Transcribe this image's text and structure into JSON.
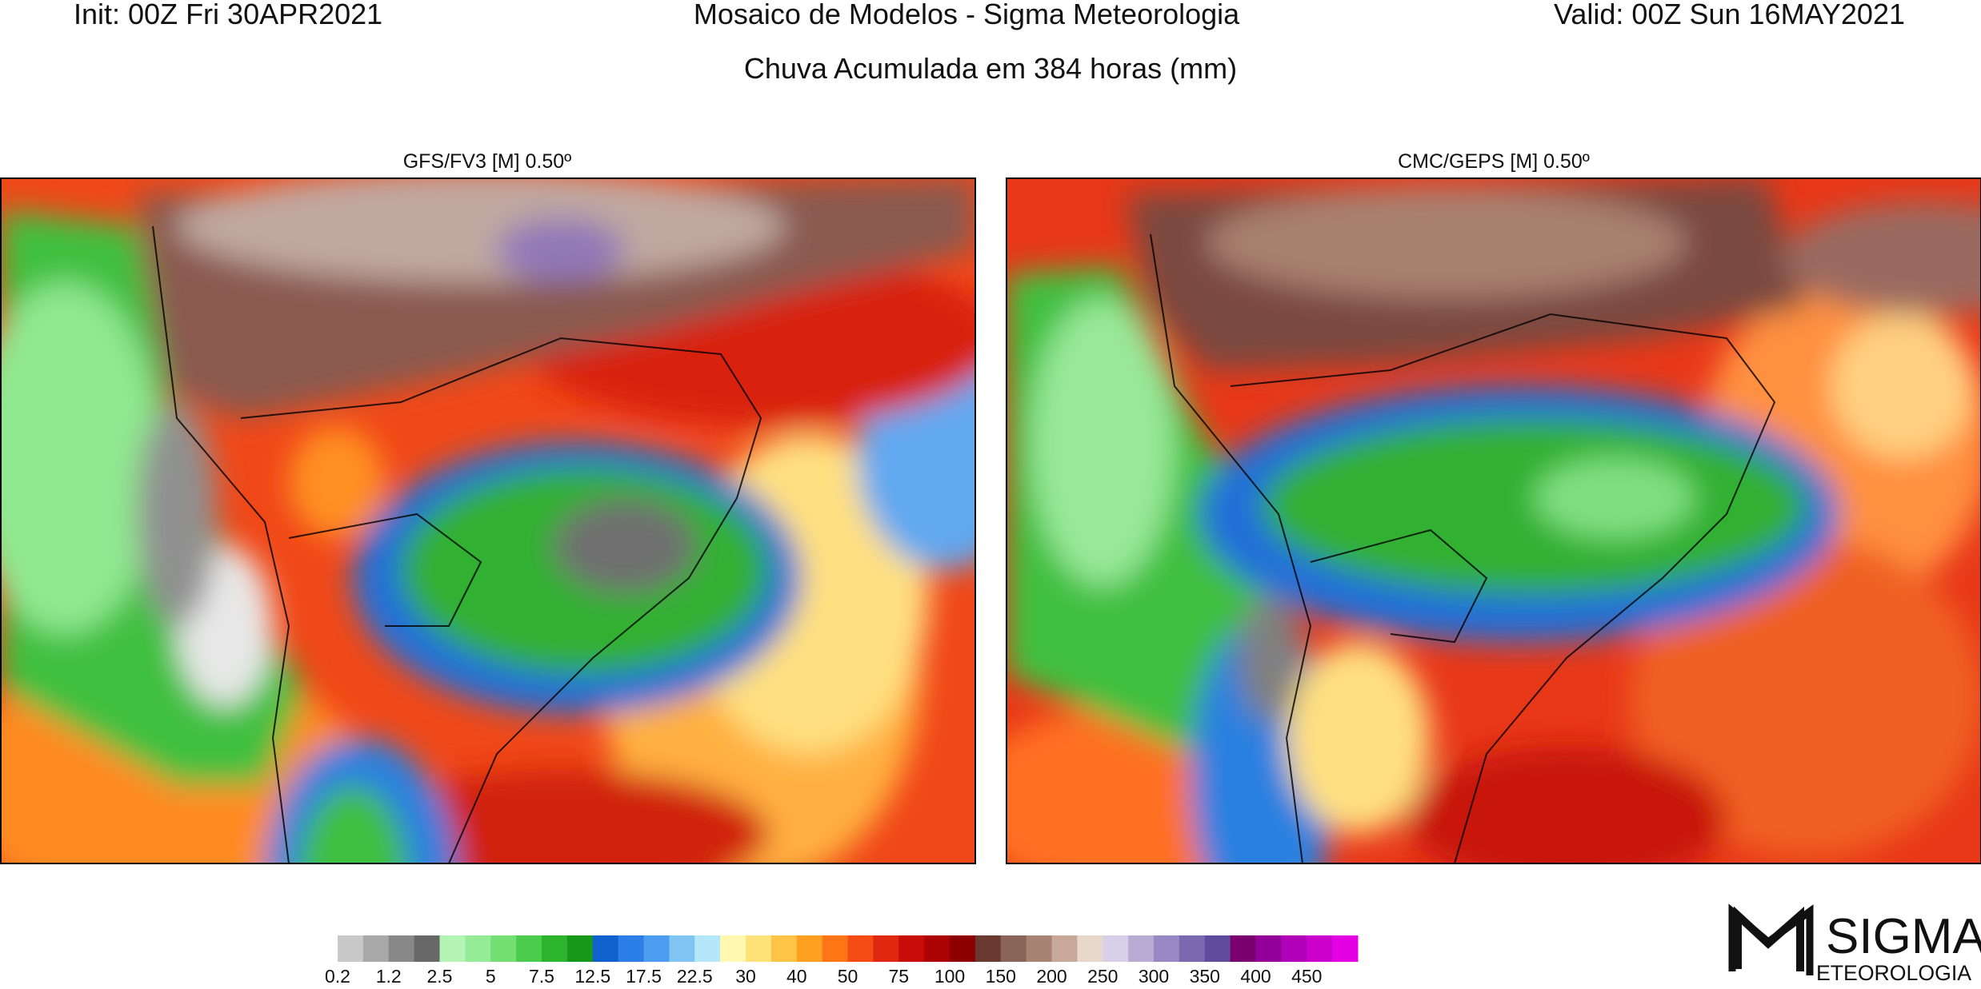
{
  "header": {
    "init": "Init: 00Z Fri 30APR2021",
    "title": "Mosaico de Modelos - Sigma Meteorologia",
    "valid": "Valid: 00Z Sun 16MAY2021",
    "subtitle": "Chuva Acumulada em 384 horas (mm)"
  },
  "panels": [
    {
      "title": "GFS/FV3 [M] 0.50º"
    },
    {
      "title": "CMC/GEPS [M] 0.50º"
    }
  ],
  "colorbar": {
    "labels": [
      "0.2",
      "1.2",
      "2.5",
      "5",
      "7.5",
      "12.5",
      "17.5",
      "22.5",
      "30",
      "40",
      "50",
      "75",
      "100",
      "150",
      "200",
      "250",
      "300",
      "350",
      "400",
      "450"
    ]
  },
  "logo": {
    "name": "SIGMA",
    "tagline": "ETEOROLOGIA"
  }
}
